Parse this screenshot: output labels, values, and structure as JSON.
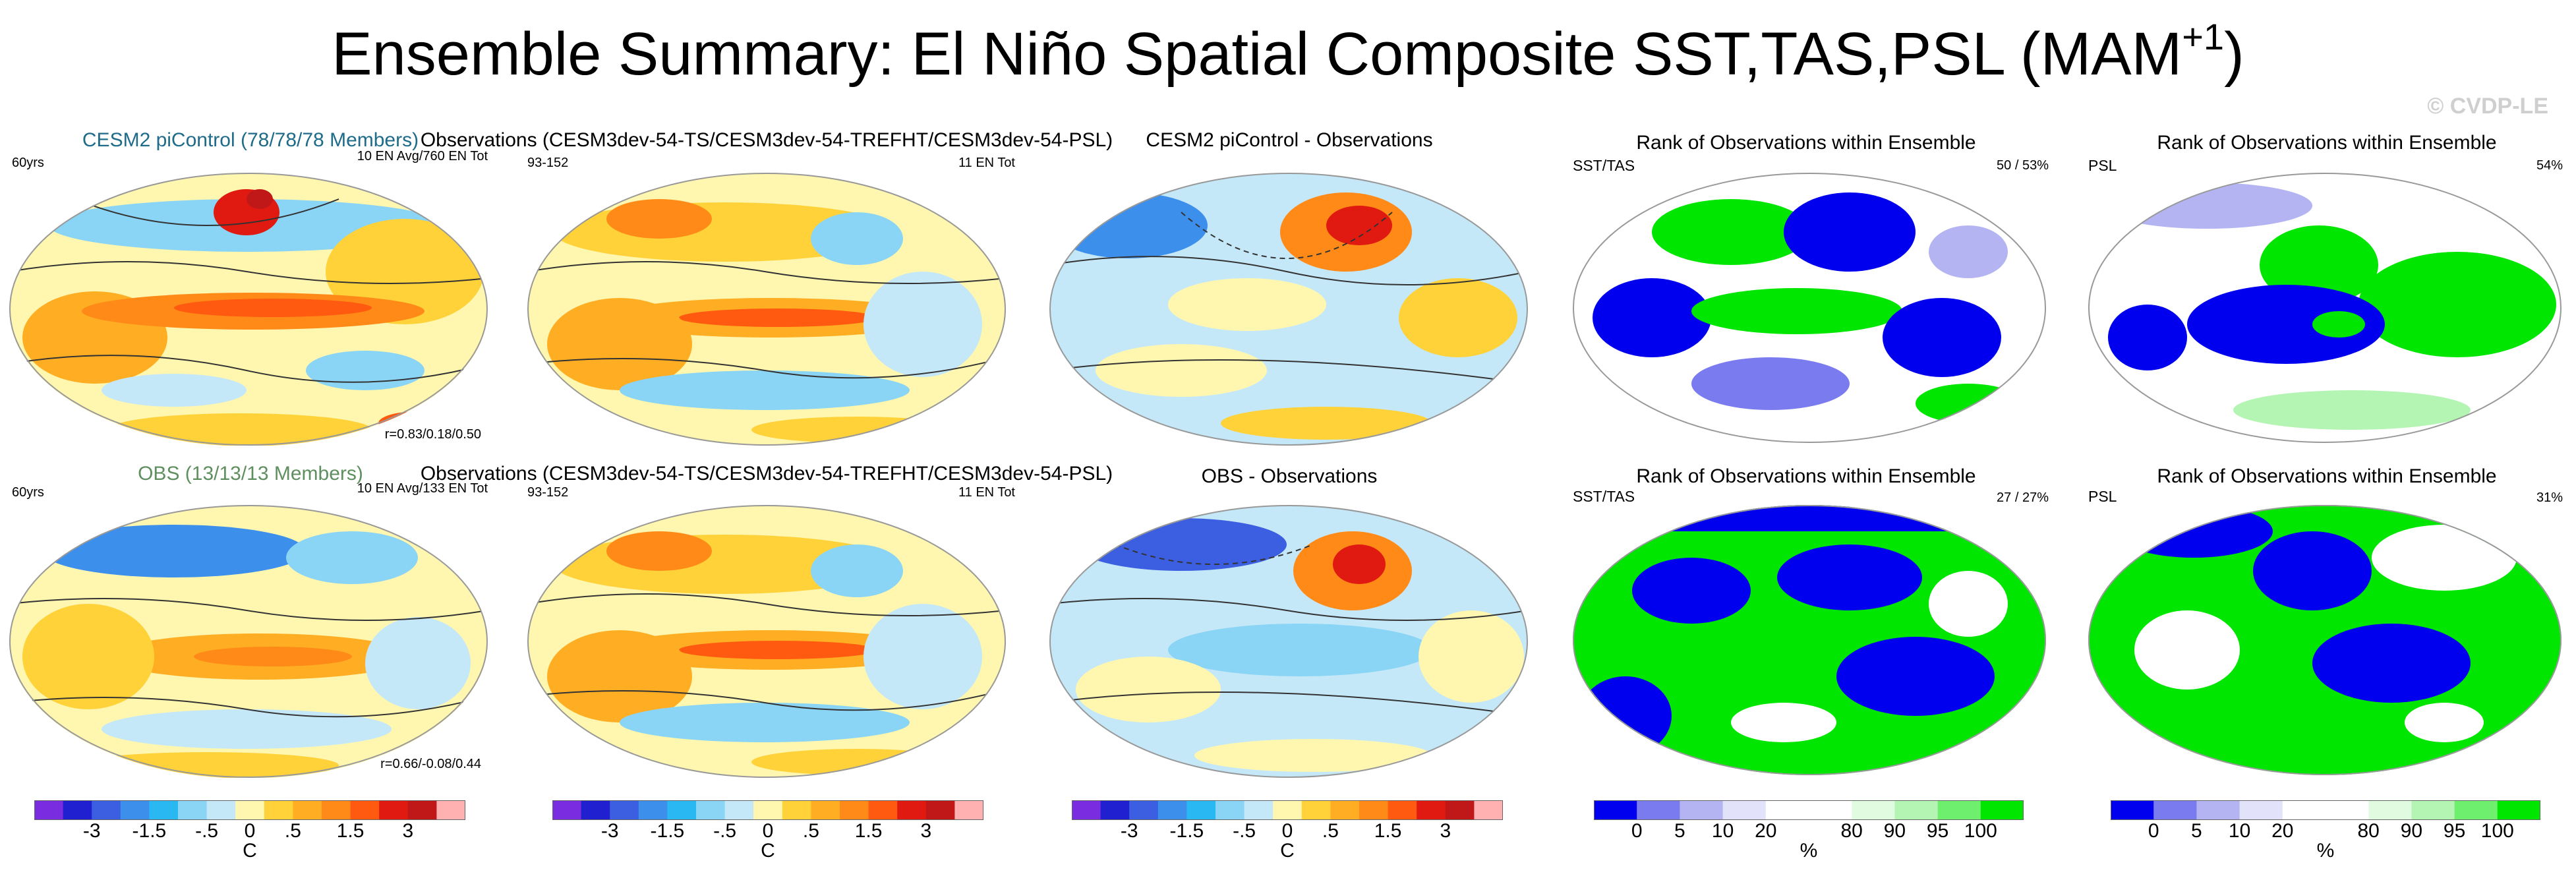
{
  "title_main": "Ensemble Summary: El Niño Spatial Composite SST,TAS,PSL (MAM",
  "title_sup": "+1",
  "title_close": ")",
  "watermark": "© CVDP-LE",
  "row1": {
    "p1_title": "CESM2 piControl (78/78/78 Members)",
    "p1_title_color": "#1f6b8a",
    "p1_left": "60yrs",
    "p1_right": "10 EN Avg/760 EN Tot",
    "p1_corr": "r=0.83/0.18/0.50",
    "p2_title": "Observations (CESM3dev-54-TS/CESM3dev-54-TREFHT/CESM3dev-54-PSL)",
    "p2_left": "93-152",
    "p2_right": "11 EN Tot",
    "p3_title": "CESM2 piControl - Observations",
    "p4_title": "Rank of Observations within Ensemble",
    "p4_left": "SST/TAS",
    "p4_right": "50 /  53%",
    "p5_title": "Rank of Observations within Ensemble",
    "p5_left": "PSL",
    "p5_right": "54%"
  },
  "row2": {
    "p1_title": "OBS (13/13/13 Members)",
    "p1_title_color": "#5f8f5f",
    "p1_left": "60yrs",
    "p1_right": "10 EN Avg/133 EN Tot",
    "p1_corr": "r=0.66/-0.08/0.44",
    "p2_title": "Observations (CESM3dev-54-TS/CESM3dev-54-TREFHT/CESM3dev-54-PSL)",
    "p2_left": "93-152",
    "p2_right": "11 EN Tot",
    "p3_title": "OBS - Observations",
    "p4_title": "Rank of Observations within Ensemble",
    "p4_left": "SST/TAS",
    "p4_right": "27 /  27%",
    "p5_title": "Rank of Observations within Ensemble",
    "p5_left": "PSL",
    "p5_right": "31%"
  },
  "colorbar_temp": {
    "colors": [
      "#7a2de0",
      "#2020d0",
      "#3b5fe0",
      "#3d8fec",
      "#2ab8f2",
      "#8ad4f5",
      "#c5e8f8",
      "#fff7b0",
      "#ffd23a",
      "#ffae24",
      "#ff8a18",
      "#ff5a10",
      "#e01a10",
      "#c01818",
      "#ffb0b0"
    ],
    "labels": [
      "-3",
      "-1.5",
      "-.5",
      "0",
      ".5",
      "1.5",
      "3"
    ],
    "unit": "C"
  },
  "colorbar_rank": {
    "colors": [
      "#0000ee",
      "#7b7bf0",
      "#b4b4f2",
      "#e2e2fa",
      "#ffffff",
      "#ffffff",
      "#e0fbe0",
      "#b4f5b4",
      "#6ef06e",
      "#00e600"
    ],
    "labels": [
      "0",
      "5",
      "10",
      "20",
      "80",
      "90",
      "95",
      "100"
    ],
    "unit": "%"
  }
}
